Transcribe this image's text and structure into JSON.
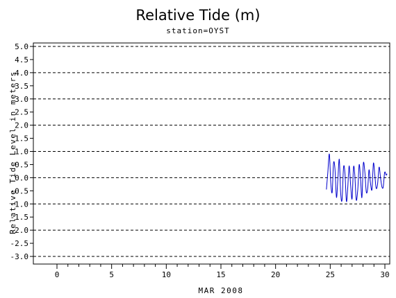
{
  "chart_data": {
    "type": "line",
    "title": "Relative Tide (m)",
    "subtitle": "station=OYST",
    "xlabel": "MAR 2008",
    "ylabel": "Relative Tide Level in meters",
    "xlim": [
      0,
      30
    ],
    "ylim": [
      -3.0,
      5.0
    ],
    "x_ticks": [
      0,
      5,
      10,
      15,
      20,
      25,
      30
    ],
    "x_tick_labels": [
      "0",
      "5",
      "10",
      "15",
      "20",
      "25",
      "30"
    ],
    "y_ticks": [
      5.0,
      4.5,
      4.0,
      3.5,
      3.0,
      2.5,
      2.0,
      1.5,
      1.0,
      0.5,
      0.0,
      -0.5,
      -1.0,
      -1.5,
      -2.0,
      -2.5,
      -3.0
    ],
    "y_tick_labels": [
      "5.0",
      "4.5",
      "4.0",
      "3.5",
      "3.0",
      "2.5",
      "2.0",
      "1.5",
      "1.0",
      "0.5",
      "0.0",
      "-0.5",
      "-1.0",
      "-1.5",
      "-2.0",
      "-2.5",
      "-3.0"
    ],
    "gridlines_y": [
      5.0,
      4.0,
      3.0,
      2.0,
      1.0,
      0.0,
      -1.0,
      -2.0,
      -3.0
    ],
    "grid": "horizontal dashed at whole meters",
    "line_color": "#0000cc",
    "series": [
      {
        "x": [
          24.65,
          24.78,
          24.92,
          25.05,
          25.18,
          25.3,
          25.43,
          25.57,
          25.7,
          25.83,
          25.95,
          26.08,
          26.22,
          26.35,
          26.48,
          26.6,
          26.73,
          26.87,
          27.0,
          27.13,
          27.25,
          27.38,
          27.52,
          27.65,
          27.78,
          27.9,
          28.03,
          28.17,
          28.3,
          28.43,
          28.55,
          28.68,
          28.82,
          28.95,
          29.08,
          29.2,
          29.33,
          29.47,
          29.6,
          29.73,
          29.85,
          29.98,
          30.12,
          30.2
        ],
        "y": [
          -0.45,
          0.2,
          0.9,
          -0.2,
          -0.55,
          0.55,
          0.35,
          -0.75,
          -0.05,
          0.7,
          -0.55,
          -0.85,
          0.4,
          0.15,
          -0.9,
          -0.4,
          0.45,
          -0.3,
          -0.8,
          0.4,
          0.1,
          -0.85,
          -0.45,
          0.5,
          -0.1,
          -0.75,
          0.55,
          0.2,
          -0.55,
          -0.4,
          0.3,
          -0.2,
          -0.45,
          0.55,
          0.1,
          -0.4,
          -0.25,
          0.4,
          0.0,
          -0.35,
          -0.35,
          0.2,
          0.1,
          0.15
        ]
      }
    ]
  }
}
